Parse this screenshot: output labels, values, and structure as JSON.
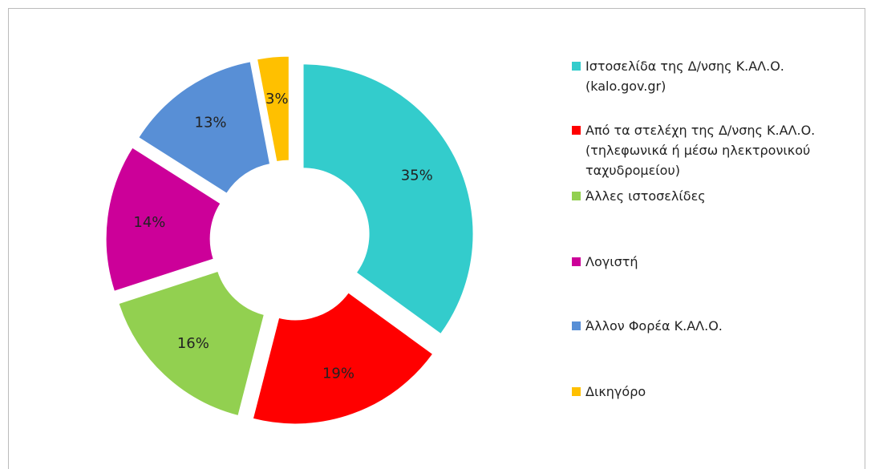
{
  "chart_data": {
    "type": "donut",
    "categories": [
      "Ιστοσελίδα της Δ/νσης Κ.ΑΛ.Ο. (kalo.gov.gr)",
      "Από τα στελέχη της Δ/νσης Κ.ΑΛ.Ο. (τηλεφωνικά ή μέσω ηλεκτρονικού ταχυδρομείου)",
      "Άλλες ιστοσελίδες",
      "Λογιστή",
      "Άλλον Φορέα Κ.ΑΛ.Ο.",
      "Δικηγόρο"
    ],
    "values": [
      35,
      19,
      16,
      14,
      13,
      3
    ],
    "value_labels": [
      "35%",
      "19%",
      "16%",
      "14%",
      "13%",
      "3%"
    ],
    "colors": [
      "#33cccc",
      "#ff0000",
      "#92d050",
      "#cc0099",
      "#588fd6",
      "#ffc000"
    ],
    "legend": "right"
  }
}
